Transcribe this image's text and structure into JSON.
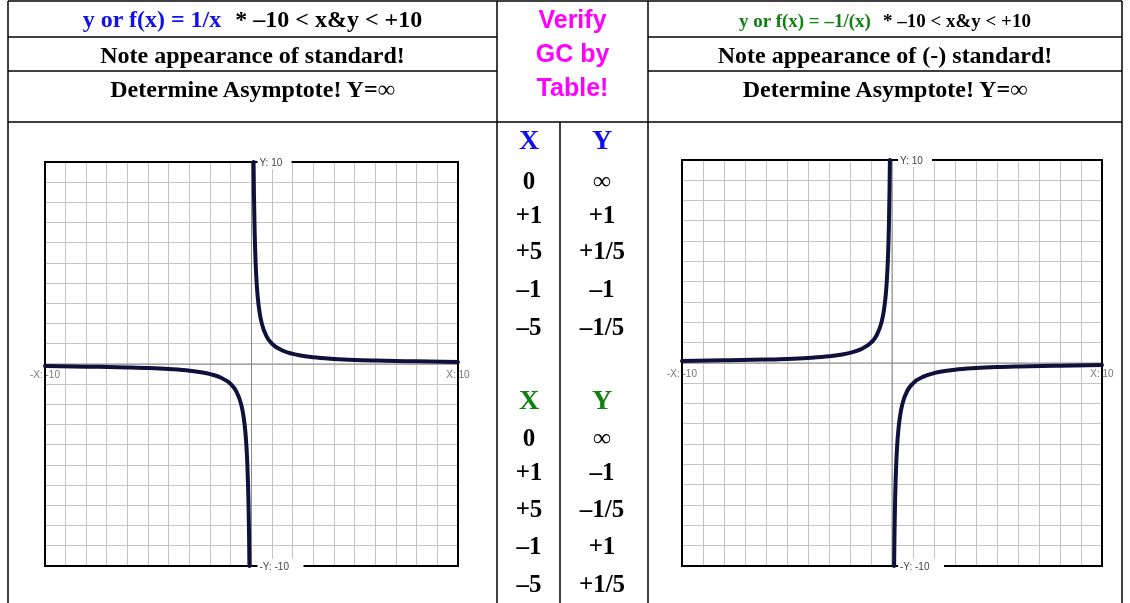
{
  "chart_data": [
    {
      "type": "line",
      "title": "y or f(x) = 1/x",
      "subtitle": "* –10 < x&y < +10",
      "annotations": [
        "Note appearance of standard!",
        "Determine Asymptote! Y=∞"
      ],
      "x": [
        -10,
        -8,
        -6,
        -5,
        -4,
        -3,
        -2,
        -1.5,
        -1,
        -0.75,
        -0.5,
        -0.4,
        -0.3,
        -0.25,
        -0.2,
        -0.15,
        -0.12,
        -0.1,
        0,
        0.1,
        0.12,
        0.15,
        0.2,
        0.25,
        0.3,
        0.4,
        0.5,
        0.75,
        1,
        1.5,
        2,
        3,
        4,
        5,
        6,
        8,
        10
      ],
      "series": [
        {
          "color": "#10103c",
          "values": [
            -0.1,
            -0.13,
            -0.17,
            -0.2,
            -0.25,
            -0.33,
            -0.5,
            -0.67,
            -1,
            -1.33,
            -2,
            -2.5,
            -3.33,
            -4,
            -5,
            -6.67,
            -8.33,
            -10,
            null,
            10,
            8.33,
            6.67,
            5,
            4,
            3.33,
            2.5,
            2,
            1.33,
            1,
            0.67,
            0.5,
            0.33,
            0.25,
            0.2,
            0.17,
            0.13,
            0.1
          ]
        }
      ],
      "xlim": [
        -10,
        10
      ],
      "ylim": [
        -10,
        10
      ],
      "xticks": [
        {
          "value": -10,
          "label": "-X: -10"
        },
        {
          "value": -9,
          "label": null
        },
        {
          "value": -8,
          "label": null
        },
        {
          "value": -7,
          "label": null
        },
        {
          "value": -6,
          "label": null
        },
        {
          "value": -5,
          "label": null
        },
        {
          "value": -4,
          "label": null
        },
        {
          "value": -3,
          "label": null
        },
        {
          "value": -2,
          "label": null
        },
        {
          "value": -1,
          "label": null
        },
        {
          "value": 0,
          "label": null
        },
        {
          "value": 1,
          "label": null
        },
        {
          "value": 2,
          "label": null
        },
        {
          "value": 3,
          "label": null
        },
        {
          "value": 4,
          "label": null
        },
        {
          "value": 5,
          "label": null
        },
        {
          "value": 6,
          "label": null
        },
        {
          "value": 7,
          "label": null
        },
        {
          "value": 8,
          "label": null
        },
        {
          "value": 9,
          "label": null
        },
        {
          "value": 10,
          "label": "X: 10"
        }
      ],
      "yticks": [
        {
          "value": -10,
          "label": "-Y: -10"
        },
        {
          "value": -9,
          "label": null
        },
        {
          "value": -8,
          "label": null
        },
        {
          "value": -7,
          "label": null
        },
        {
          "value": -6,
          "label": null
        },
        {
          "value": -5,
          "label": null
        },
        {
          "value": -4,
          "label": null
        },
        {
          "value": -3,
          "label": null
        },
        {
          "value": -2,
          "label": null
        },
        {
          "value": -1,
          "label": null
        },
        {
          "value": 0,
          "label": null
        },
        {
          "value": 1,
          "label": null
        },
        {
          "value": 2,
          "label": null
        },
        {
          "value": 3,
          "label": null
        },
        {
          "value": 4,
          "label": null
        },
        {
          "value": 5,
          "label": null
        },
        {
          "value": 6,
          "label": null
        },
        {
          "value": 7,
          "label": null
        },
        {
          "value": 8,
          "label": null
        },
        {
          "value": 9,
          "label": null
        },
        {
          "value": 10,
          "label": "Y: 10"
        }
      ],
      "grid": true
    },
    {
      "type": "other",
      "title": "Verify GC by Table!",
      "annotations": [
        "X",
        "Y",
        "0",
        "∞",
        "+1",
        "+1",
        "+5",
        "+1/5",
        "–1",
        "–1",
        "–5",
        "–1/5",
        "X",
        "Y",
        "0",
        "∞",
        "+1",
        "–1",
        "+5",
        "–1/5",
        "–1",
        "+1",
        "–5",
        "+1/5"
      ]
    },
    {
      "type": "line",
      "title": "y or f(x) = –1/(x)",
      "subtitle": "* –10 < x&y < +10",
      "annotations": [
        "Note appearance of (-) standard!",
        "Determine Asymptote!  Y=∞"
      ],
      "x": [
        -10,
        -8,
        -6,
        -5,
        -4,
        -3,
        -2,
        -1.5,
        -1,
        -0.75,
        -0.5,
        -0.4,
        -0.3,
        -0.25,
        -0.2,
        -0.15,
        -0.12,
        -0.1,
        0,
        0.1,
        0.12,
        0.15,
        0.2,
        0.25,
        0.3,
        0.4,
        0.5,
        0.75,
        1,
        1.5,
        2,
        3,
        4,
        5,
        6,
        8,
        10
      ],
      "series": [
        {
          "color": "#10103c",
          "values": [
            0.1,
            0.13,
            0.17,
            0.2,
            0.25,
            0.33,
            0.5,
            0.67,
            1,
            1.33,
            2,
            2.5,
            3.33,
            4,
            5,
            6.67,
            8.33,
            10,
            null,
            -10,
            -8.33,
            -6.67,
            -5,
            -4,
            -3.33,
            -2.5,
            -2,
            -1.33,
            -1,
            -0.67,
            -0.5,
            -0.33,
            -0.25,
            -0.2,
            -0.17,
            -0.13,
            -0.1
          ]
        }
      ],
      "xlim": [
        -10,
        10
      ],
      "ylim": [
        -10,
        10
      ],
      "xticks": [
        {
          "value": -10,
          "label": "-X: -10"
        },
        {
          "value": -9,
          "label": null
        },
        {
          "value": -8,
          "label": null
        },
        {
          "value": -7,
          "label": null
        },
        {
          "value": -6,
          "label": null
        },
        {
          "value": -5,
          "label": null
        },
        {
          "value": -4,
          "label": null
        },
        {
          "value": -3,
          "label": null
        },
        {
          "value": -2,
          "label": null
        },
        {
          "value": -1,
          "label": null
        },
        {
          "value": 0,
          "label": null
        },
        {
          "value": 1,
          "label": null
        },
        {
          "value": 2,
          "label": null
        },
        {
          "value": 3,
          "label": null
        },
        {
          "value": 4,
          "label": null
        },
        {
          "value": 5,
          "label": null
        },
        {
          "value": 6,
          "label": null
        },
        {
          "value": 7,
          "label": null
        },
        {
          "value": 8,
          "label": null
        },
        {
          "value": 9,
          "label": null
        },
        {
          "value": 10,
          "label": "X: 10"
        }
      ],
      "yticks": [
        {
          "value": -10,
          "label": "-Y: -10"
        },
        {
          "value": -9,
          "label": null
        },
        {
          "value": -8,
          "label": null
        },
        {
          "value": -7,
          "label": null
        },
        {
          "value": -6,
          "label": null
        },
        {
          "value": -5,
          "label": null
        },
        {
          "value": -4,
          "label": null
        },
        {
          "value": -3,
          "label": null
        },
        {
          "value": -2,
          "label": null
        },
        {
          "value": -1,
          "label": null
        },
        {
          "value": 0,
          "label": null
        },
        {
          "value": 1,
          "label": null
        },
        {
          "value": 2,
          "label": null
        },
        {
          "value": 3,
          "label": null
        },
        {
          "value": 4,
          "label": null
        },
        {
          "value": 5,
          "label": null
        },
        {
          "value": 6,
          "label": null
        },
        {
          "value": 7,
          "label": null
        },
        {
          "value": 8,
          "label": null
        },
        {
          "value": 9,
          "label": null
        },
        {
          "value": 10,
          "label": "Y: 10"
        }
      ],
      "grid": true
    }
  ]
}
